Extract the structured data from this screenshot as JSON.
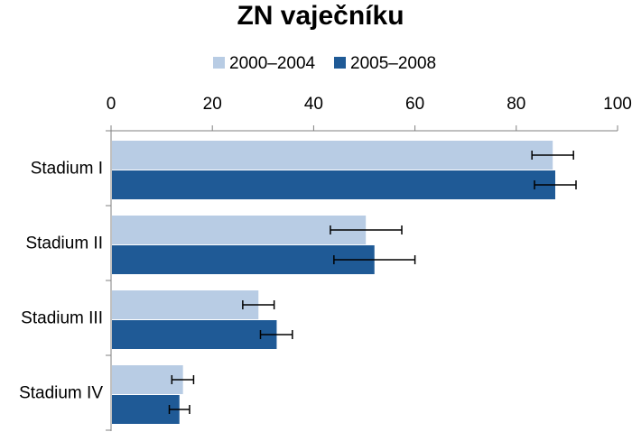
{
  "chart_data": {
    "type": "bar",
    "orientation": "horizontal",
    "title": "ZN vaječníku",
    "categories": [
      "Stadium I",
      "Stadium II",
      "Stadium III",
      "Stadium IV"
    ],
    "series": [
      {
        "name": "2000–2004",
        "color": "#B8CCE4",
        "values": [
          87.2,
          50.3,
          29.1,
          14.2
        ],
        "error_low": [
          83.1,
          43.3,
          26.0,
          12.0
        ],
        "error_high": [
          91.3,
          57.4,
          32.2,
          16.3
        ]
      },
      {
        "name": "2005–2008",
        "color": "#1F5A96",
        "values": [
          87.7,
          52.0,
          32.7,
          13.5
        ],
        "error_low": [
          83.6,
          44.0,
          29.5,
          11.5
        ],
        "error_high": [
          91.8,
          60.0,
          35.8,
          15.5
        ]
      }
    ],
    "x_ticks": [
      "0",
      "20",
      "40",
      "60",
      "80",
      "100"
    ],
    "xlim": [
      0,
      100
    ],
    "x_axis_position": "top",
    "legend_position": "top",
    "grid": false
  }
}
